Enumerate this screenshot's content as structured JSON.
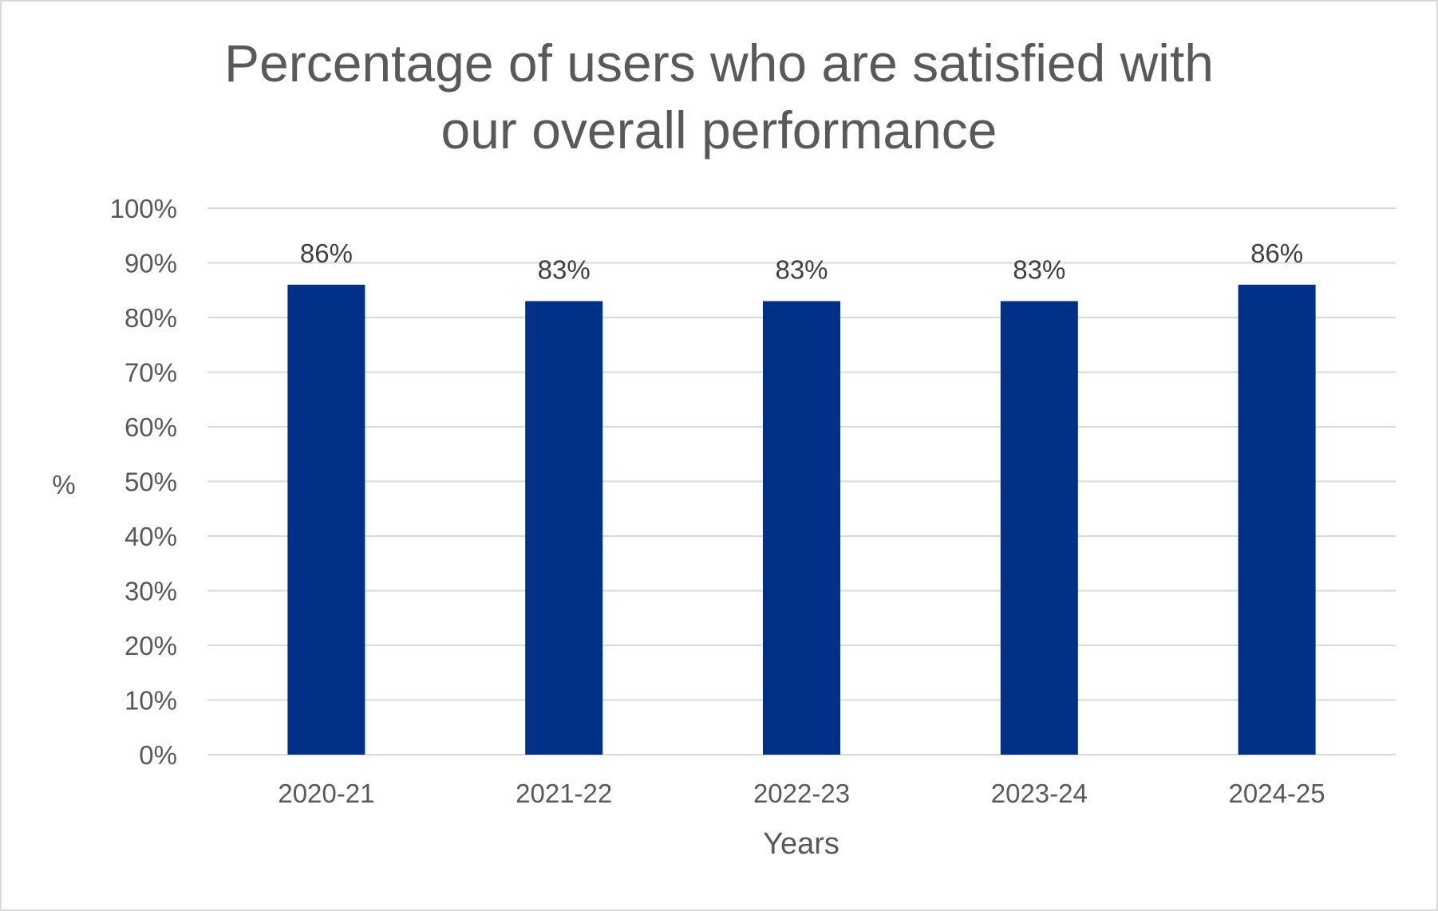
{
  "chart_data": {
    "type": "bar",
    "title": [
      "Percentage of users who are satisfied with",
      "our overall performance"
    ],
    "xlabel": "Years",
    "ylabel": "%",
    "categories": [
      "2020-21",
      "2021-22",
      "2022-23",
      "2023-24",
      "2024-25"
    ],
    "values": [
      86,
      83,
      83,
      83,
      86
    ],
    "data_labels": [
      "86%",
      "83%",
      "83%",
      "83%",
      "86%"
    ],
    "yticks": [
      "0%",
      "10%",
      "20%",
      "30%",
      "40%",
      "50%",
      "60%",
      "70%",
      "80%",
      "90%",
      "100%"
    ],
    "ylim": [
      0,
      100
    ],
    "grid": true,
    "legend": "none",
    "colors": {
      "bar": "#003087",
      "grid": "#d9d9d9",
      "text": "#595959",
      "label": "#404040"
    }
  }
}
